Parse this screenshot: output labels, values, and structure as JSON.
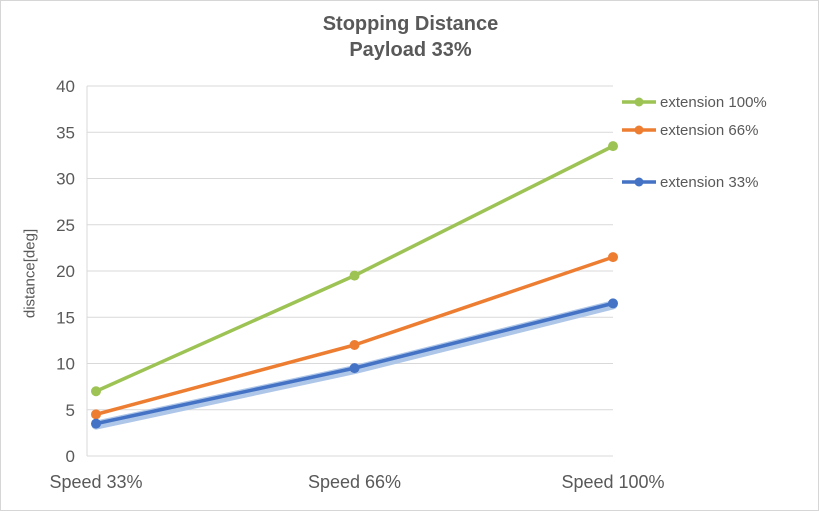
{
  "chart_data": {
    "type": "line",
    "title": "Stopping Distance",
    "subtitle": "Payload 33%",
    "ylabel": "distance[deg]",
    "xlabel": "",
    "categories": [
      "Speed 33%",
      "Speed 66%",
      "Speed 100%"
    ],
    "series": [
      {
        "name": "extension 100%",
        "values": [
          7,
          19.5,
          33.5
        ],
        "color": "#9cc353"
      },
      {
        "name": "extension 66%",
        "values": [
          4.5,
          12,
          21.5
        ],
        "color": "#ed7d31"
      },
      {
        "name": "extension 33%",
        "values": [
          3.5,
          9.5,
          16.5
        ],
        "color": "#4472c4",
        "halo_color": "#aec6e8"
      }
    ],
    "ylim": [
      0,
      40
    ],
    "ytick_step": 5,
    "grid": true,
    "legend_position": "right",
    "colors": {
      "text": "#595959",
      "grid": "#d9d9d9",
      "border": "#d6d6d6",
      "background": "#ffffff"
    }
  }
}
